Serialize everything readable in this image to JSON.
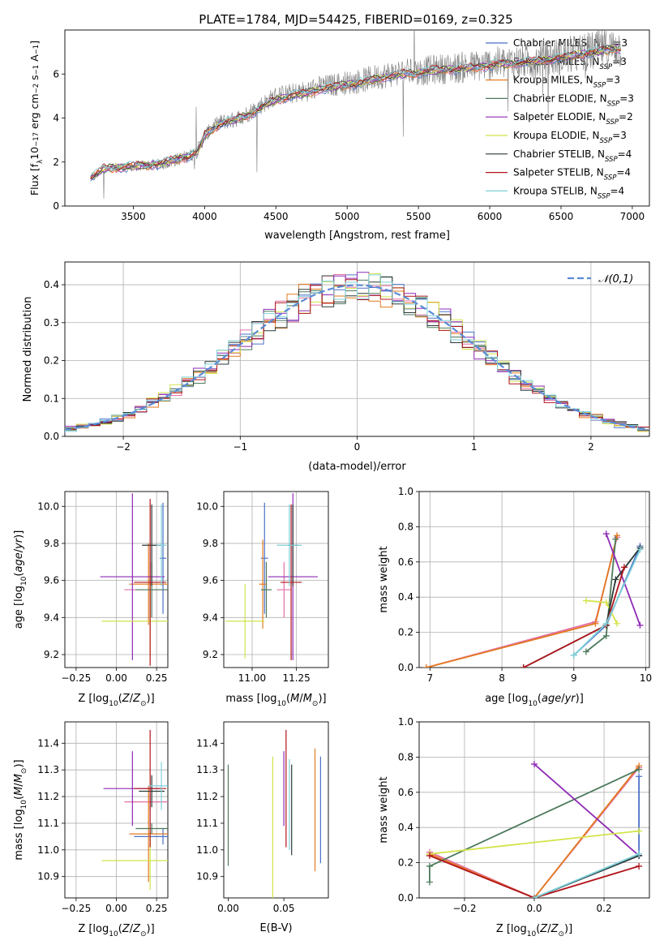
{
  "chart_data": [
    {
      "id": "spectrum",
      "type": "line",
      "title": "PLATE=1784, MJD=54425, FIBERID=0169, z=0.325",
      "xlabel": "wavelength [Angstrom, rest frame]",
      "ylabel": "Flux [f_λ 10^-17 erg cm^-2 s^-1 A^-1]",
      "xlim": [
        3020,
        7120
      ],
      "ylim": [
        0,
        8.0
      ],
      "xticks": [
        3500,
        4000,
        4500,
        5000,
        5500,
        6000,
        6500,
        7000
      ],
      "yticks": [
        0,
        2,
        4,
        6
      ],
      "grid": false,
      "legend_position": "top-right",
      "observed_spectrum": {
        "color": "#7f7f7f",
        "x": [
          3200,
          3300,
          3400,
          3500,
          3600,
          3700,
          3800,
          3900,
          3950,
          4000,
          4100,
          4200,
          4300,
          4400,
          4500,
          4600,
          4700,
          4800,
          4900,
          5000,
          5100,
          5200,
          5300,
          5400,
          5500,
          5600,
          5700,
          5800,
          5900,
          6000,
          6100,
          6200,
          6300,
          6400,
          6500,
          6600,
          6700,
          6800,
          6900
        ],
        "y": [
          1.25,
          1.65,
          1.75,
          1.8,
          1.85,
          1.9,
          2.1,
          2.3,
          2.5,
          3.2,
          3.8,
          3.9,
          4.2,
          4.6,
          5.0,
          5.1,
          5.2,
          5.4,
          5.5,
          5.6,
          5.7,
          5.85,
          6.0,
          6.05,
          6.1,
          6.2,
          6.25,
          6.3,
          6.35,
          6.45,
          6.5,
          6.55,
          6.6,
          6.7,
          6.8,
          6.9,
          7.0,
          7.1,
          7.2
        ]
      },
      "series": [
        {
          "name": "Chabrier MILES, N_SSP=3",
          "color": "#4b72c8"
        },
        {
          "name": "Salpeter MILES, N_SSP=3",
          "color": "#e36fa6"
        },
        {
          "name": "Kroupa MILES, N_SSP=3",
          "color": "#e37a1f"
        },
        {
          "name": "Chabrier ELODIE, N_SSP=3",
          "color": "#4d7a5c"
        },
        {
          "name": "Salpeter ELODIE, N_SSP=2",
          "color": "#8e2ab5"
        },
        {
          "name": "Kroupa ELODIE, N_SSP=3",
          "color": "#d2e34a"
        },
        {
          "name": "Chabrier STELIB, N_SSP=4",
          "color": "#2a3a36"
        },
        {
          "name": "Salpeter STELIB, N_SSP=4",
          "color": "#b0151c"
        },
        {
          "name": "Kroupa STELIB, N_SSP=4",
          "color": "#7fd0d8"
        }
      ],
      "model_x": [
        3200,
        3300,
        3400,
        3500,
        3600,
        3700,
        3800,
        3900,
        3950,
        4000,
        4100,
        4200,
        4300,
        4400,
        4500,
        4600,
        4700,
        4800,
        4900,
        5000,
        5100,
        5200,
        5300,
        5400,
        5500,
        5600,
        5700,
        5800,
        5900,
        6000,
        6100,
        6200,
        6300,
        6400,
        6500,
        6600,
        6700,
        6800,
        6900
      ],
      "model_y": [
        1.3,
        1.7,
        1.75,
        1.8,
        1.85,
        1.95,
        2.1,
        2.3,
        2.45,
        3.2,
        3.7,
        3.9,
        4.1,
        4.5,
        4.8,
        5.0,
        5.1,
        5.3,
        5.4,
        5.5,
        5.6,
        5.75,
        5.9,
        6.0,
        6.05,
        6.15,
        6.2,
        6.25,
        6.3,
        6.4,
        6.45,
        6.5,
        6.55,
        6.65,
        6.75,
        6.85,
        6.95,
        7.05,
        7.15
      ]
    },
    {
      "id": "residuals",
      "type": "histogram",
      "xlabel": "(data-model)/error",
      "ylabel": "Normed distribution",
      "xlim": [
        -2.5,
        2.5
      ],
      "ylim": [
        0,
        0.46
      ],
      "xticks": [
        -2,
        -1,
        0,
        1,
        2
      ],
      "yticks": [
        0.0,
        0.1,
        0.2,
        0.3,
        0.4
      ],
      "grid": true,
      "legend_position": "top-right",
      "legend": "𝒩(0,1)",
      "gauss_color": "#5b8bd6",
      "bin_width": 0.1
    },
    {
      "id": "z-age",
      "type": "scatter",
      "xlabel": "Z [log10(Z/Z⊙)]",
      "ylabel": "age [log10(age/yr)]",
      "xlim": [
        -0.32,
        0.32
      ],
      "ylim": [
        9.13,
        10.08
      ],
      "xticks": [
        -0.25,
        0.0,
        0.25
      ],
      "xtick_labels": [
        "−0.25",
        "0.00",
        "0.25"
      ],
      "yticks": [
        9.2,
        9.4,
        9.6,
        9.8,
        10.0
      ],
      "grid": true,
      "points": [
        {
          "x": 0.29,
          "y": 9.72,
          "xerr": 0.02,
          "yerr": 0.3,
          "color": "#4b72c8"
        },
        {
          "x": 0.21,
          "y": 9.55,
          "xerr": 0.16,
          "yerr": 0.15,
          "color": "#e36fa6"
        },
        {
          "x": 0.2,
          "y": 9.58,
          "xerr": 0.12,
          "yerr": 0.22,
          "color": "#e37a1f"
        },
        {
          "x": 0.22,
          "y": 9.55,
          "xerr": 0.1,
          "yerr": 0.15,
          "color": "#4d7a5c"
        },
        {
          "x": 0.1,
          "y": 9.62,
          "xerr": 0.2,
          "yerr": 0.45,
          "color": "#8e2ab5"
        },
        {
          "x": 0.21,
          "y": 9.38,
          "xerr": 0.3,
          "yerr": 0.2,
          "color": "#d2e34a"
        },
        {
          "x": 0.22,
          "y": 9.79,
          "xerr": 0.06,
          "yerr": 0.22,
          "color": "#2a3a36"
        },
        {
          "x": 0.21,
          "y": 9.59,
          "xerr": 0.1,
          "yerr": 0.45,
          "color": "#b0151c"
        },
        {
          "x": 0.28,
          "y": 9.79,
          "xerr": 0.03,
          "yerr": 0.22,
          "color": "#7fd0d8"
        }
      ]
    },
    {
      "id": "mass-age",
      "type": "scatter",
      "xlabel": "mass [log10(M/M⊙)]",
      "xlim": [
        10.84,
        11.43
      ],
      "ylim": [
        9.13,
        10.08
      ],
      "xticks": [
        11.0,
        11.25
      ],
      "xtick_labels": [
        "11.00",
        "11.25"
      ],
      "yticks": [
        9.2,
        9.4,
        9.6,
        9.8,
        10.0
      ],
      "grid": true,
      "points": [
        {
          "x": 11.07,
          "y": 9.72,
          "xerr": 0.02,
          "yerr": 0.3,
          "color": "#4b72c8"
        },
        {
          "x": 11.18,
          "y": 9.55,
          "xerr": 0.04,
          "yerr": 0.15,
          "color": "#e36fa6"
        },
        {
          "x": 11.06,
          "y": 9.58,
          "xerr": 0.02,
          "yerr": 0.24,
          "color": "#e37a1f"
        },
        {
          "x": 11.08,
          "y": 9.55,
          "xerr": 0.03,
          "yerr": 0.15,
          "color": "#4d7a5c"
        },
        {
          "x": 11.23,
          "y": 9.62,
          "xerr": 0.14,
          "yerr": 0.45,
          "color": "#8e2ab5"
        },
        {
          "x": 10.96,
          "y": 9.38,
          "xerr": 0.11,
          "yerr": 0.2,
          "color": "#d2e34a"
        },
        {
          "x": 11.23,
          "y": 9.79,
          "xerr": 0.03,
          "yerr": 0.22,
          "color": "#2a3a36"
        },
        {
          "x": 11.22,
          "y": 9.59,
          "xerr": 0.06,
          "yerr": 0.42,
          "color": "#b0151c"
        },
        {
          "x": 11.21,
          "y": 9.79,
          "xerr": 0.07,
          "yerr": 0.22,
          "color": "#7fd0d8"
        }
      ]
    },
    {
      "id": "age-weight",
      "type": "line",
      "xlabel": "age [log10(age/yr)]",
      "ylabel": "mass weight",
      "xlim": [
        6.85,
        10.05
      ],
      "ylim": [
        0,
        1.0
      ],
      "xticks": [
        7,
        8,
        9,
        10
      ],
      "yticks": [
        0.0,
        0.2,
        0.4,
        0.6,
        0.8,
        1.0
      ],
      "grid": true,
      "series": [
        {
          "color": "#4b72c8",
          "x": [
            9.0,
            9.45,
            9.92
          ],
          "y": [
            0.07,
            0.24,
            0.69
          ]
        },
        {
          "color": "#e36fa6",
          "x": [
            6.95,
            9.3,
            9.6
          ],
          "y": [
            0.0,
            0.26,
            0.74
          ]
        },
        {
          "color": "#e37a1f",
          "x": [
            6.95,
            9.3,
            9.6
          ],
          "y": [
            0.0,
            0.25,
            0.75
          ]
        },
        {
          "color": "#4d7a5c",
          "x": [
            9.17,
            9.45,
            9.58
          ],
          "y": [
            0.09,
            0.18,
            0.73
          ]
        },
        {
          "color": "#8e2ab5",
          "x": [
            9.45,
            9.92
          ],
          "y": [
            0.76,
            0.24
          ]
        },
        {
          "color": "#d2e34a",
          "x": [
            9.17,
            9.45,
            9.6
          ],
          "y": [
            0.38,
            0.37,
            0.25
          ]
        },
        {
          "color": "#2a3a36",
          "x": [
            8.3,
            9.45,
            9.58,
            9.92
          ],
          "y": [
            0.0,
            0.24,
            0.5,
            0.68
          ]
        },
        {
          "color": "#b0151c",
          "x": [
            8.3,
            9.45,
            9.7
          ],
          "y": [
            0.0,
            0.24,
            0.57
          ]
        },
        {
          "color": "#7fd0d8",
          "x": [
            9.0,
            9.45,
            9.92
          ],
          "y": [
            0.07,
            0.25,
            0.67
          ]
        }
      ]
    },
    {
      "id": "z-mass",
      "type": "scatter",
      "xlabel": "Z [log10(Z/Z⊙)]",
      "ylabel": "mass [log10(M/M⊙)]",
      "xlim": [
        -0.32,
        0.32
      ],
      "ylim": [
        10.82,
        11.48
      ],
      "xticks": [
        -0.25,
        0.0,
        0.25
      ],
      "xtick_labels": [
        "−0.25",
        "0.00",
        "0.25"
      ],
      "yticks": [
        10.9,
        11.0,
        11.1,
        11.2,
        11.3,
        11.4
      ],
      "grid": true,
      "points": [
        {
          "x": 0.29,
          "y": 11.05,
          "xerr": 0.18,
          "yerr": 0.03,
          "color": "#4b72c8"
        },
        {
          "x": 0.21,
          "y": 11.18,
          "xerr": 0.16,
          "yerr": 0.03,
          "color": "#e36fa6"
        },
        {
          "x": 0.2,
          "y": 11.06,
          "xerr": 0.12,
          "yerr": 0.18,
          "color": "#e37a1f"
        },
        {
          "x": 0.22,
          "y": 11.08,
          "xerr": 0.1,
          "yerr": 0.02,
          "color": "#4d7a5c"
        },
        {
          "x": 0.1,
          "y": 11.23,
          "xerr": 0.18,
          "yerr": 0.14,
          "color": "#8e2ab5"
        },
        {
          "x": 0.21,
          "y": 10.96,
          "xerr": 0.3,
          "yerr": 0.11,
          "color": "#d2e34a"
        },
        {
          "x": 0.22,
          "y": 11.22,
          "xerr": 0.08,
          "yerr": 0.06,
          "color": "#2a3a36"
        },
        {
          "x": 0.21,
          "y": 11.23,
          "xerr": 0.1,
          "yerr": 0.22,
          "color": "#b0151c"
        },
        {
          "x": 0.28,
          "y": 11.24,
          "xerr": 0.08,
          "yerr": 0.09,
          "color": "#7fd0d8"
        }
      ]
    },
    {
      "id": "ebv-mass",
      "type": "scatter",
      "xlabel": "E(B-V)",
      "xlim": [
        -0.004,
        0.09
      ],
      "ylim": [
        10.82,
        11.48
      ],
      "xticks": [
        0.0,
        0.05
      ],
      "xtick_labels": [
        "0.00",
        "0.05"
      ],
      "yticks": [
        10.9,
        11.0,
        11.1,
        11.2,
        11.3,
        11.4
      ],
      "grid": false,
      "points": [
        {
          "x": 0.083,
          "y": 11.15,
          "yerr": 0.2,
          "color": "#4b72c8"
        },
        {
          "x": 0.078,
          "y": 11.15,
          "yerr": 0.23,
          "color": "#e37a1f"
        },
        {
          "x": 0.0,
          "y": 11.13,
          "yerr": 0.19,
          "color": "#4d7a5c"
        },
        {
          "x": 0.05,
          "y": 11.23,
          "yerr": 0.14,
          "color": "#8e2ab5"
        },
        {
          "x": 0.04,
          "y": 11.07,
          "yerr": 0.28,
          "color": "#d2e34a"
        },
        {
          "x": 0.057,
          "y": 11.15,
          "yerr": 0.17,
          "color": "#2a3a36"
        },
        {
          "x": 0.052,
          "y": 11.23,
          "yerr": 0.22,
          "color": "#b0151c"
        },
        {
          "x": 0.055,
          "y": 11.17,
          "yerr": 0.17,
          "color": "#7fd0d8"
        }
      ]
    },
    {
      "id": "z-weight",
      "type": "line",
      "xlabel": "Z [log10(Z/Z⊙)]",
      "ylabel": "mass weight",
      "xlim": [
        -0.33,
        0.33
      ],
      "ylim": [
        0,
        1.0
      ],
      "xticks": [
        -0.2,
        0.0,
        0.2
      ],
      "xtick_labels": [
        "−0.2",
        "0.0",
        "0.2"
      ],
      "yticks": [
        0.0,
        0.2,
        0.4,
        0.6,
        0.8,
        1.0
      ],
      "grid": true,
      "series": [
        {
          "color": "#4b72c8",
          "x": [
            0.0,
            0.3,
            0.3
          ],
          "y": [
            0.0,
            0.24,
            0.69
          ]
        },
        {
          "color": "#e36fa6",
          "x": [
            -0.3,
            0.0,
            0.3
          ],
          "y": [
            0.26,
            0.0,
            0.74
          ]
        },
        {
          "color": "#e37a1f",
          "x": [
            -0.3,
            0.0,
            0.3
          ],
          "y": [
            0.25,
            0.0,
            0.75
          ]
        },
        {
          "color": "#4d7a5c",
          "x": [
            -0.3,
            -0.3,
            0.3
          ],
          "y": [
            0.09,
            0.18,
            0.73
          ]
        },
        {
          "color": "#8e2ab5",
          "x": [
            0.0,
            0.3
          ],
          "y": [
            0.76,
            0.24
          ]
        },
        {
          "color": "#d2e34a",
          "x": [
            -0.3,
            0.3
          ],
          "y": [
            0.25,
            0.38
          ]
        },
        {
          "color": "#2a3a36",
          "x": [
            0.0,
            0.3
          ],
          "y": [
            0.0,
            0.24
          ]
        },
        {
          "color": "#b0151c",
          "x": [
            -0.3,
            0.0,
            0.3
          ],
          "y": [
            0.24,
            0.0,
            0.18
          ]
        },
        {
          "color": "#7fd0d8",
          "x": [
            0.0,
            0.3
          ],
          "y": [
            0.0,
            0.25
          ]
        }
      ]
    }
  ]
}
